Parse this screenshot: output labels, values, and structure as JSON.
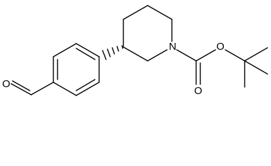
{
  "atoms": {
    "aldehyde_oxygen": "O",
    "ring_nitrogen": "N",
    "carbonyl_oxygen": "O",
    "ester_oxygen": "O"
  }
}
